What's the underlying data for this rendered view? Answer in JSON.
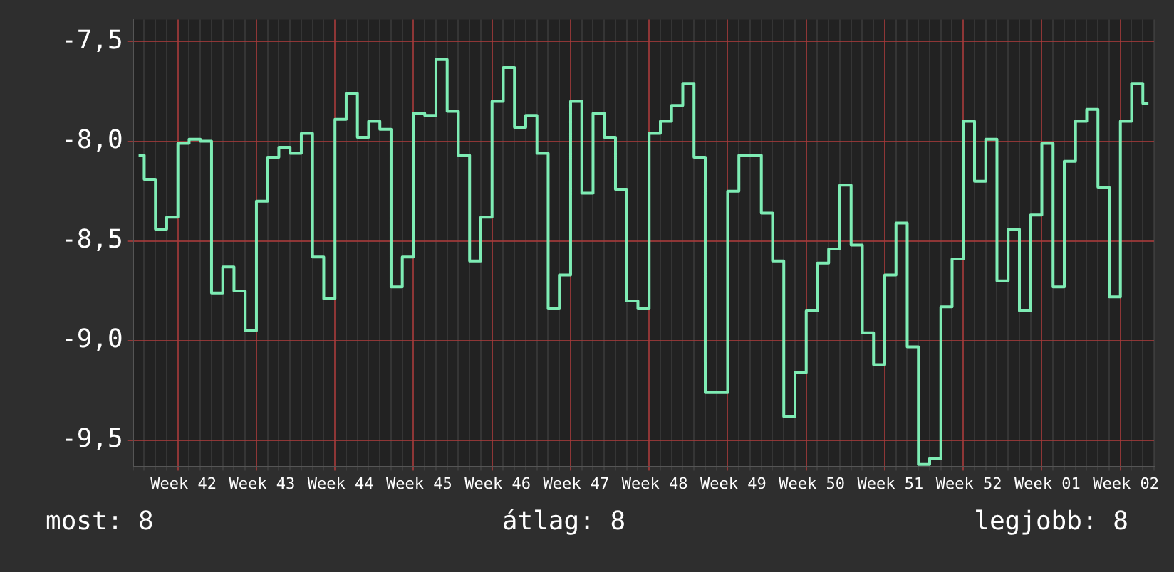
{
  "chart_data": {
    "type": "step",
    "categories": [
      null,
      null,
      null,
      null,
      "Week 42",
      null,
      null,
      null,
      null,
      null,
      null,
      "Week 43",
      null,
      null,
      null,
      null,
      null,
      null,
      "Week 44",
      null,
      null,
      null,
      null,
      null,
      null,
      "Week 45",
      null,
      null,
      null,
      null,
      null,
      null,
      "Week 46",
      null,
      null,
      null,
      null,
      null,
      null,
      "Week 47",
      null,
      null,
      null,
      null,
      null,
      null,
      "Week 48",
      null,
      null,
      null,
      null,
      null,
      null,
      "Week 49",
      null,
      null,
      null,
      null,
      null,
      null,
      "Week 50",
      null,
      null,
      null,
      null,
      null,
      null,
      "Week 51",
      null,
      null,
      null,
      null,
      null,
      null,
      "Week 52",
      null,
      null,
      null,
      null,
      null,
      null,
      "Week 01",
      null,
      null,
      null,
      null,
      null,
      null,
      "Week 02",
      null,
      null
    ],
    "series": [
      {
        "color": "#7eecb4",
        "values": [
          -8.07,
          -8.19,
          -8.44,
          -8.38,
          -8.01,
          -7.99,
          -8.0,
          -8.76,
          -8.63,
          -8.75,
          -8.95,
          -8.3,
          -8.08,
          -8.03,
          -8.06,
          -7.96,
          -8.58,
          -8.79,
          -7.89,
          -7.76,
          -7.98,
          -7.9,
          -7.94,
          -8.73,
          -8.58,
          -7.86,
          -7.87,
          -7.59,
          -7.85,
          -8.07,
          -8.6,
          -8.38,
          -7.8,
          -7.63,
          -7.93,
          -7.87,
          -8.06,
          -8.84,
          -8.67,
          -7.8,
          -8.26,
          -7.86,
          -7.98,
          -8.24,
          -8.8,
          -8.84,
          -7.96,
          -7.9,
          -7.82,
          -7.71,
          -8.08,
          -9.26,
          -9.26,
          -8.25,
          -8.07,
          -8.07,
          -8.36,
          -8.6,
          -9.38,
          -9.16,
          -8.85,
          -8.61,
          -8.54,
          -8.22,
          -8.52,
          -8.96,
          -9.12,
          -8.67,
          -8.41,
          -9.03,
          -9.62,
          -9.59,
          -8.83,
          -8.59,
          -7.9,
          -8.2,
          -7.99,
          -8.7,
          -8.44,
          -8.85,
          -8.37,
          -8.01,
          -8.73,
          -8.1,
          -7.9,
          -7.84,
          -8.23,
          -8.78,
          -7.9,
          -7.71,
          -7.81
        ]
      }
    ],
    "ylim": [
      -9.63,
      -7.39
    ],
    "yticks": [
      {
        "value": -7.5,
        "label": "-7,5"
      },
      {
        "value": -8.0,
        "label": "-8,0"
      },
      {
        "value": -8.5,
        "label": "-8,5"
      },
      {
        "value": -9.0,
        "label": "-9,0"
      },
      {
        "value": -9.5,
        "label": "-9,5"
      }
    ],
    "grid": true,
    "legend": false,
    "annotations": [
      "most: 8",
      "átlag: 8",
      "legjobb: 8"
    ]
  }
}
